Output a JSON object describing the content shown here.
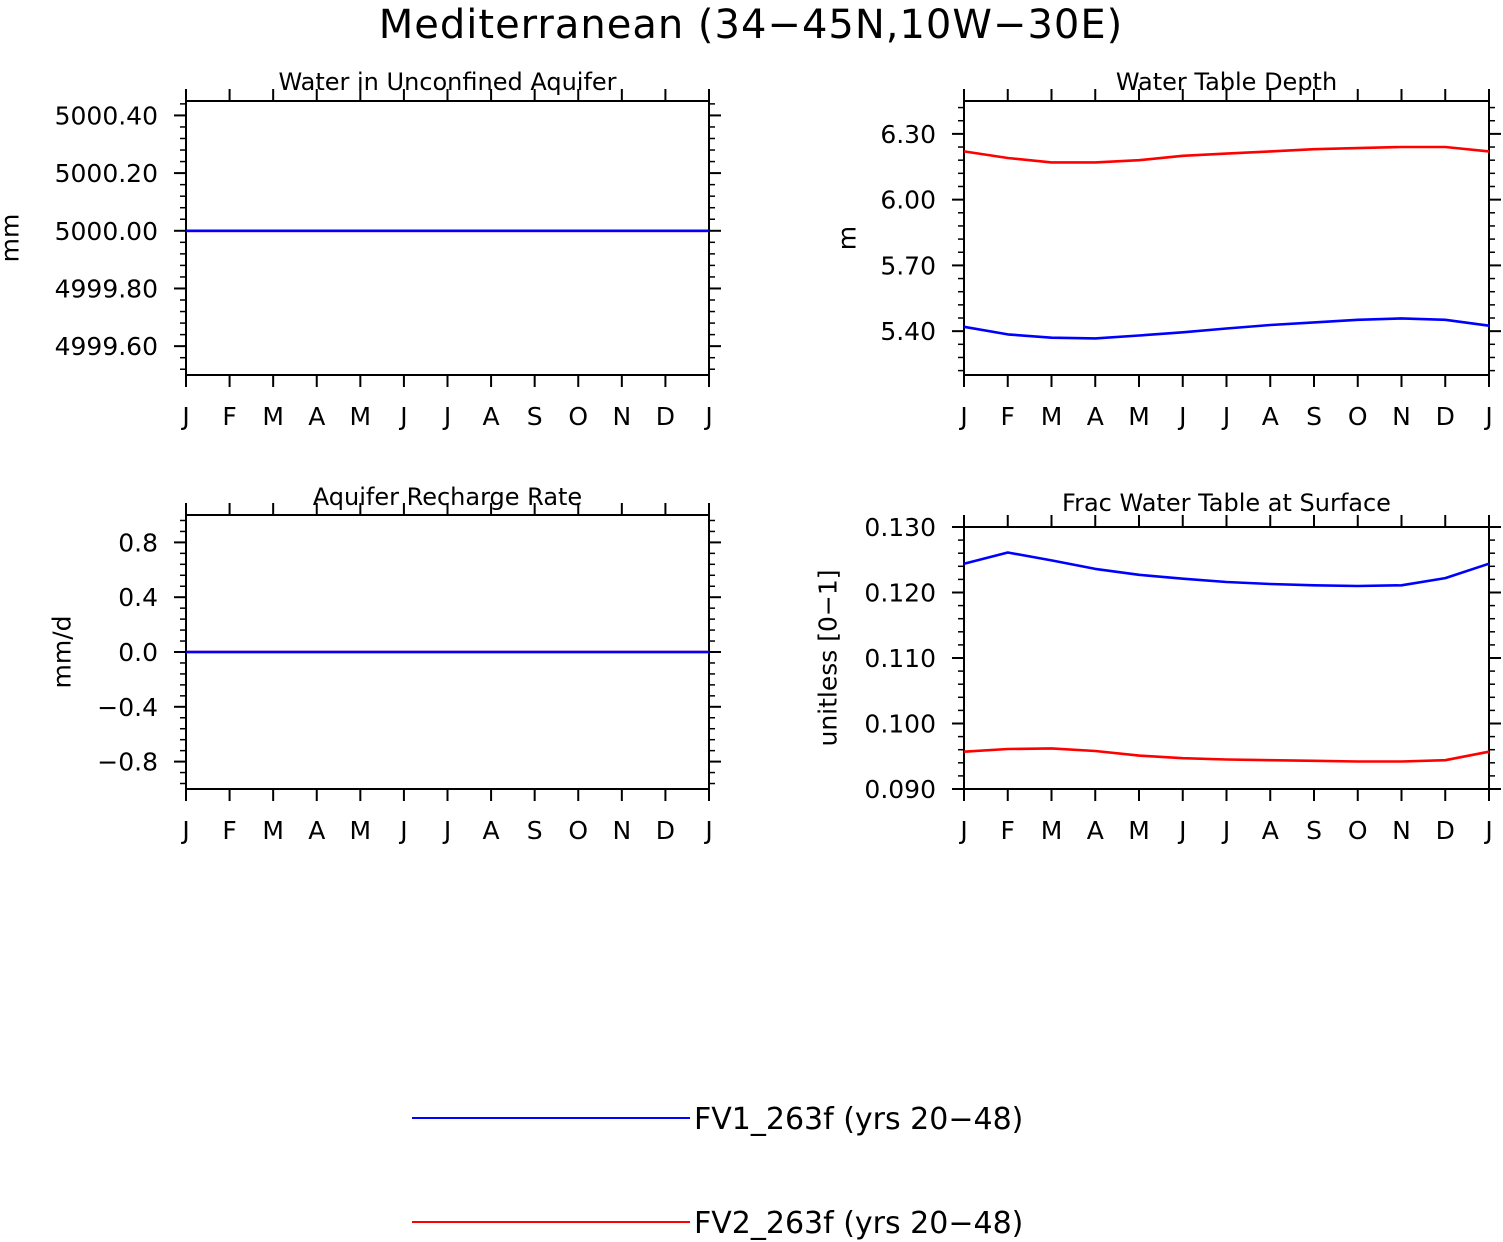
{
  "main_title": "Mediterranean (34−45N,10W−30E)",
  "legend": [
    {
      "label": "FV1_263f (yrs 20−48)",
      "color": "#0000ff"
    },
    {
      "label": "FV2_263f (yrs 20−48)",
      "color": "#ff0000"
    }
  ],
  "chart_data": [
    {
      "type": "line",
      "title": "Water in Unconfined Aquifer",
      "xlabel": "",
      "ylabel": "mm",
      "categories": [
        "J",
        "F",
        "M",
        "A",
        "M",
        "J",
        "J",
        "A",
        "S",
        "O",
        "N",
        "D",
        "J"
      ],
      "ylim": [
        4999.5,
        5000.45
      ],
      "yticks": [
        4999.6,
        4999.8,
        5000.0,
        5000.2,
        5000.4
      ],
      "yticklabels": [
        "4999.60",
        "4999.80",
        "5000.00",
        "5000.20",
        "5000.40"
      ],
      "series": [
        {
          "name": "FV2_263f (yrs 20−48)",
          "color": "#ff0000",
          "values": [
            5000,
            5000,
            5000,
            5000,
            5000,
            5000,
            5000,
            5000,
            5000,
            5000,
            5000,
            5000,
            5000
          ]
        },
        {
          "name": "FV1_263f (yrs 20−48)",
          "color": "#0000ff",
          "values": [
            5000,
            5000,
            5000,
            5000,
            5000,
            5000,
            5000,
            5000,
            5000,
            5000,
            5000,
            5000,
            5000
          ]
        }
      ]
    },
    {
      "type": "line",
      "title": "Water Table Depth",
      "xlabel": "",
      "ylabel": "m",
      "categories": [
        "J",
        "F",
        "M",
        "A",
        "M",
        "J",
        "J",
        "A",
        "S",
        "O",
        "N",
        "D",
        "J"
      ],
      "ylim": [
        5.2,
        6.45
      ],
      "yticks": [
        5.4,
        5.7,
        6.0,
        6.3
      ],
      "yticklabels": [
        "5.40",
        "5.70",
        "6.00",
        "6.30"
      ],
      "series": [
        {
          "name": "FV2_263f (yrs 20−48)",
          "color": "#ff0000",
          "values": [
            6.22,
            6.19,
            6.17,
            6.17,
            6.18,
            6.2,
            6.21,
            6.22,
            6.23,
            6.235,
            6.24,
            6.24,
            6.22
          ]
        },
        {
          "name": "FV1_263f (yrs 20−48)",
          "color": "#0000ff",
          "values": [
            5.42,
            5.385,
            5.37,
            5.367,
            5.38,
            5.395,
            5.412,
            5.428,
            5.44,
            5.452,
            5.458,
            5.452,
            5.425
          ]
        }
      ]
    },
    {
      "type": "line",
      "title": "Aquifer Recharge Rate",
      "xlabel": "",
      "ylabel": "mm/d",
      "categories": [
        "J",
        "F",
        "M",
        "A",
        "M",
        "J",
        "J",
        "A",
        "S",
        "O",
        "N",
        "D",
        "J"
      ],
      "ylim": [
        -1.0,
        1.0
      ],
      "yticks": [
        -0.8,
        -0.4,
        0.0,
        0.4,
        0.8
      ],
      "yticklabels": [
        "−0.8",
        "−0.4",
        "0.0",
        "0.4",
        "0.8"
      ],
      "series": [
        {
          "name": "FV2_263f (yrs 20−48)",
          "color": "#ff0000",
          "values": [
            0,
            0,
            0,
            0,
            0,
            0,
            0,
            0,
            0,
            0,
            0,
            0,
            0
          ]
        },
        {
          "name": "FV1_263f (yrs 20−48)",
          "color": "#0000ff",
          "values": [
            0,
            0,
            0,
            0,
            0,
            0,
            0,
            0,
            0,
            0,
            0,
            0,
            0
          ]
        }
      ]
    },
    {
      "type": "line",
      "title": "Frac Water Table at Surface",
      "xlabel": "",
      "ylabel": "unitless [0−1]",
      "categories": [
        "J",
        "F",
        "M",
        "A",
        "M",
        "J",
        "J",
        "A",
        "S",
        "O",
        "N",
        "D",
        "J"
      ],
      "ylim": [
        0.09,
        0.13
      ],
      "yticks": [
        0.09,
        0.1,
        0.11,
        0.12,
        0.13
      ],
      "yticklabels": [
        "0.090",
        "0.100",
        "0.110",
        "0.120",
        "0.130"
      ],
      "series": [
        {
          "name": "FV1_263f (yrs 20−48)",
          "color": "#0000ff",
          "values": [
            0.1244,
            0.1261,
            0.1249,
            0.1236,
            0.1227,
            0.1221,
            0.1216,
            0.1213,
            0.1211,
            0.121,
            0.1211,
            0.1222,
            0.1244
          ]
        },
        {
          "name": "FV2_263f (yrs 20−48)",
          "color": "#ff0000",
          "values": [
            0.0957,
            0.0961,
            0.0962,
            0.0958,
            0.0951,
            0.0947,
            0.0945,
            0.0944,
            0.0943,
            0.0942,
            0.0942,
            0.0944,
            0.0957
          ]
        }
      ]
    }
  ]
}
